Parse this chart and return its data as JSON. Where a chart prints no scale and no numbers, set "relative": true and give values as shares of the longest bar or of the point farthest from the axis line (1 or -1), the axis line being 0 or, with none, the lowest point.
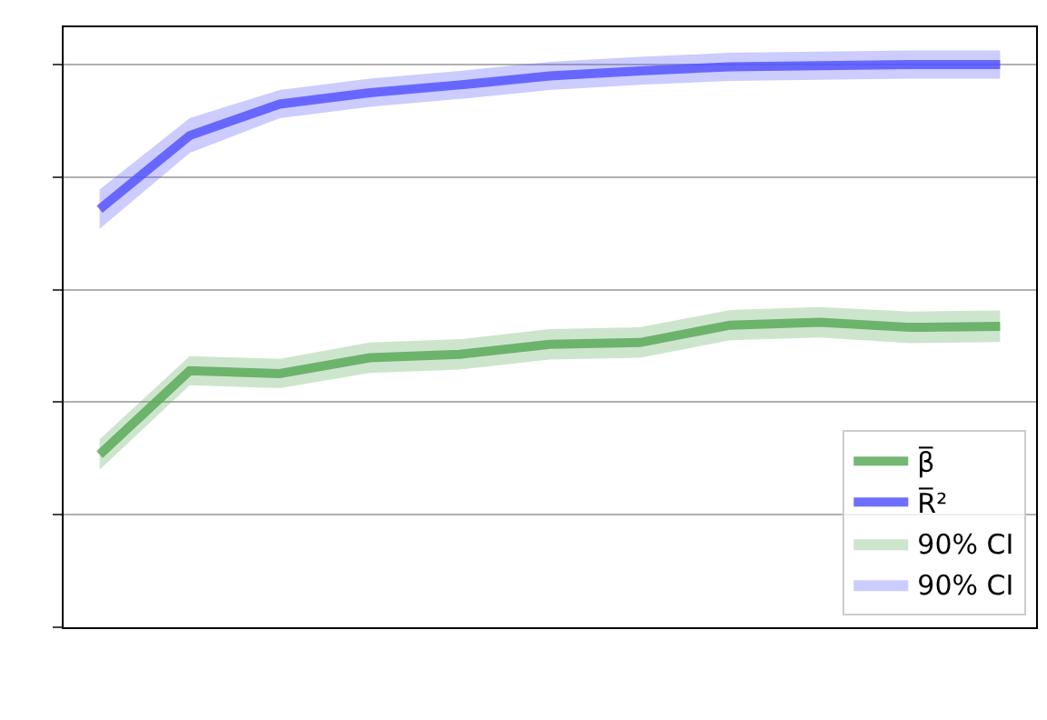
{
  "chart_data": {
    "type": "line",
    "relative": true,
    "categories": [
      null,
      null,
      null,
      null,
      null,
      null,
      null,
      null,
      null,
      null,
      null
    ],
    "series": [
      {
        "name": "β̅",
        "color": "#5aaa5a",
        "values": [
          0.307,
          0.456,
          0.451,
          0.479,
          0.485,
          0.503,
          0.506,
          0.537,
          0.542,
          0.533,
          0.535
        ]
      },
      {
        "name": "R̅²",
        "color": "#5555ff",
        "values": [
          0.743,
          0.874,
          0.93,
          0.95,
          0.964,
          0.98,
          0.989,
          0.996,
          0.998,
          1,
          1
        ]
      },
      {
        "name": "90% CI",
        "color": "#5aaa5a",
        "values": [
          null,
          null,
          null,
          null,
          null,
          null,
          null,
          null,
          null,
          null,
          null
        ],
        "lower": [
          0.28,
          0.43,
          0.425,
          0.452,
          0.458,
          0.476,
          0.479,
          0.51,
          0.515,
          0.505,
          0.507
        ],
        "upper": [
          0.334,
          0.482,
          0.477,
          0.506,
          0.512,
          0.53,
          0.533,
          0.564,
          0.569,
          0.561,
          0.563
        ]
      },
      {
        "name": "90% CI",
        "color": "#5555ff",
        "values": [
          null,
          null,
          null,
          null,
          null,
          null,
          null,
          null,
          null,
          null,
          null
        ],
        "lower": [
          0.708,
          0.843,
          0.905,
          0.925,
          0.939,
          0.955,
          0.964,
          0.971,
          0.973,
          0.975,
          0.975
        ],
        "upper": [
          0.778,
          0.905,
          0.955,
          0.975,
          0.989,
          1.005,
          1.014,
          1.021,
          1.023,
          1.025,
          1.025
        ]
      }
    ],
    "grid": true,
    "legend": "bottom right",
    "tick_labels": false
  }
}
